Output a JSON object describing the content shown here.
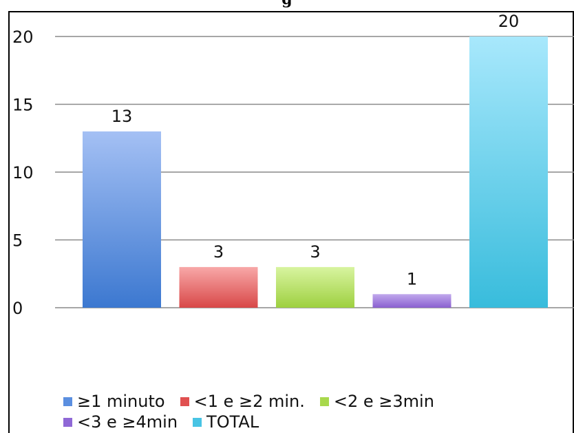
{
  "chart_data": {
    "type": "bar",
    "title": "g",
    "categories": [
      "≥1 minuto",
      "<1 e ≥2 min.",
      "<2 e ≥3min",
      "<3 e ≥4min",
      "TOTAL"
    ],
    "values": [
      13,
      3,
      3,
      1,
      20
    ],
    "data_labels": [
      "13",
      "3",
      "3",
      "1",
      "20"
    ],
    "ylim": [
      0,
      20
    ],
    "yticks": [
      0,
      5,
      10,
      15,
      20
    ],
    "ytick_labels": [
      "0",
      "5",
      "10",
      "15",
      "20"
    ],
    "grid": true,
    "legend_position": "bottom",
    "colors": {
      "bars": [
        [
          "#a4c0f4",
          "#3c78d0"
        ],
        [
          "#f8a8a8",
          "#d84848"
        ],
        [
          "#d8f4a0",
          "#9ed040"
        ],
        [
          "#c0a8ec",
          "#8a60d0"
        ],
        [
          "#a8e8fc",
          "#38bcdc"
        ]
      ],
      "legend": [
        "#5b8fe0",
        "#e05050",
        "#a8d84c",
        "#8f68d6",
        "#48c4e4"
      ],
      "grid": "#898989"
    }
  }
}
